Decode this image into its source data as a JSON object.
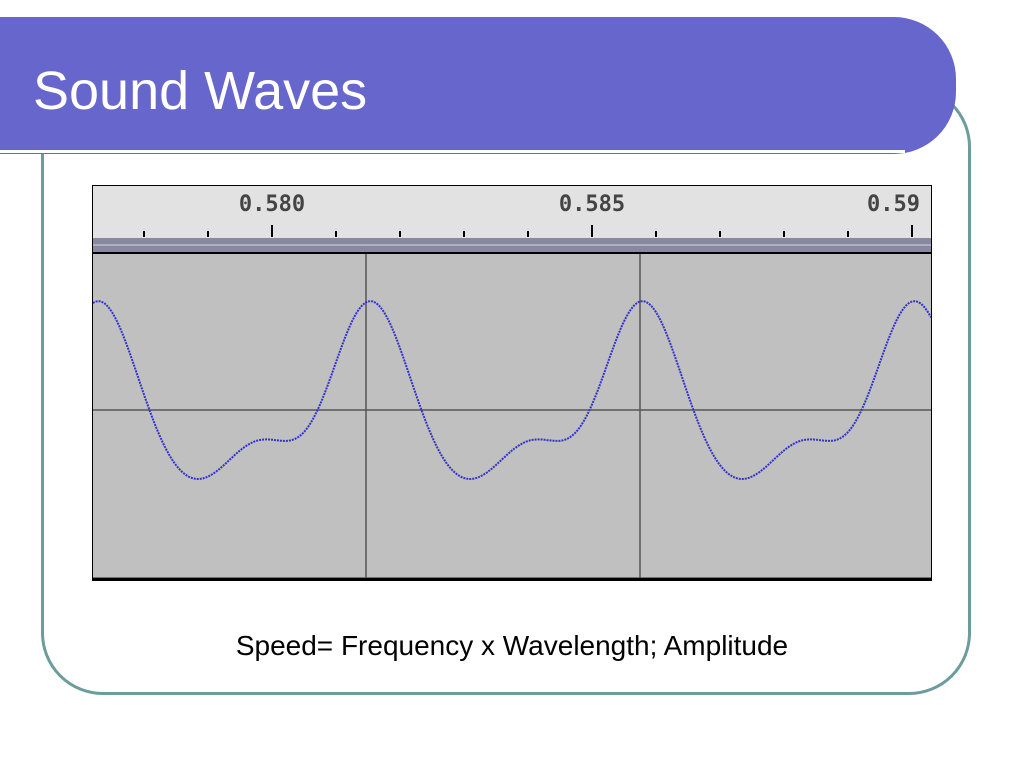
{
  "slide": {
    "title": "Sound Waves",
    "caption": "Speed= Frequency x Wavelength; Amplitude"
  },
  "waveform": {
    "ruler_labels": [
      "0.580",
      "0.585",
      "0.59"
    ],
    "colors": {
      "wave": "#3333cc",
      "track": "#c0c0c0",
      "ruler": "#e4e4e4",
      "title_bar": "#6666cc",
      "frame": "#6c9c9c"
    }
  }
}
